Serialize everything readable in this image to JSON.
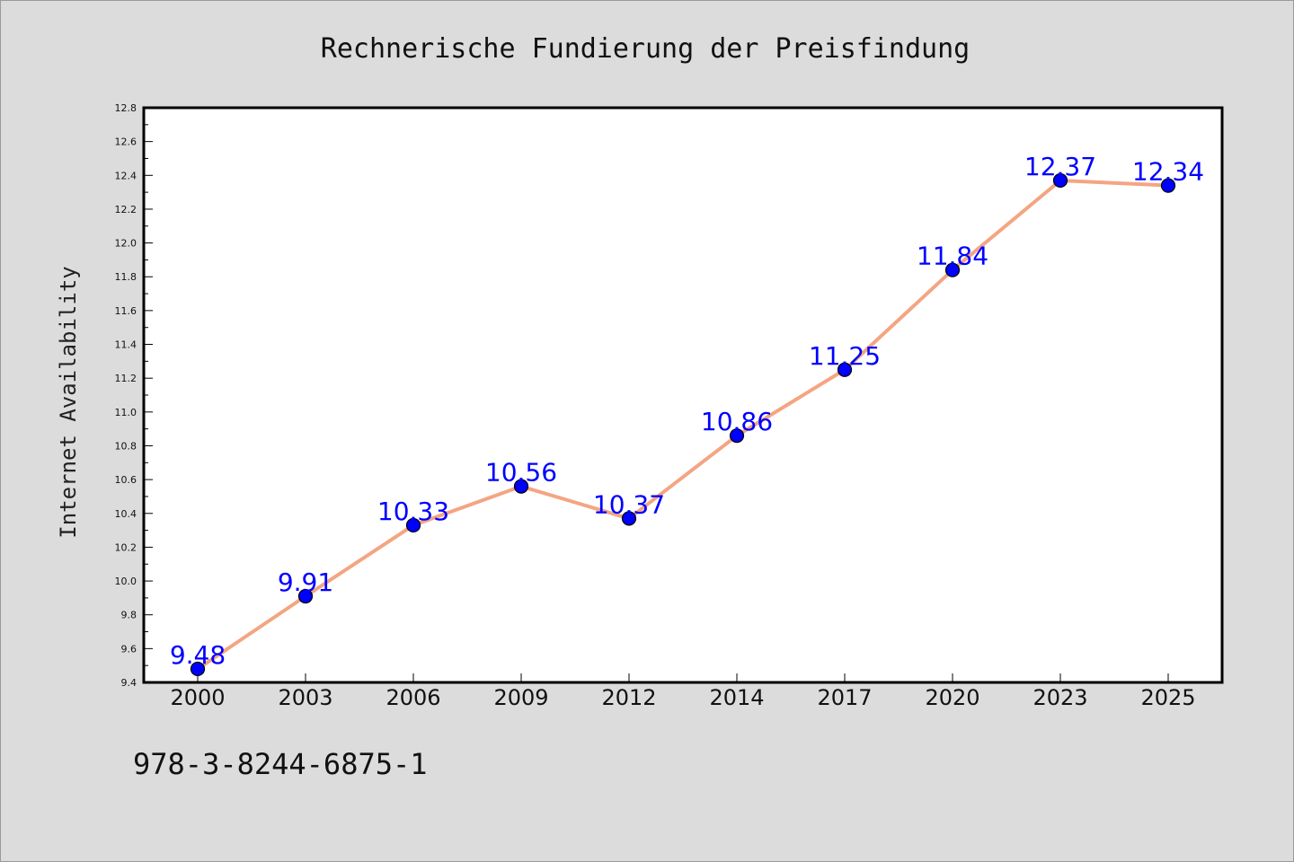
{
  "chart_data": {
    "type": "line",
    "title": "Rechnerische Fundierung der Preisfindung",
    "ylabel": "Internet Availability",
    "xlabel": "",
    "categories": [
      "2000",
      "2003",
      "2006",
      "2009",
      "2012",
      "2014",
      "2017",
      "2020",
      "2023",
      "2025"
    ],
    "series": [
      {
        "values": [
          9.48,
          9.91,
          10.33,
          10.56,
          10.37,
          10.86,
          11.25,
          11.84,
          12.37,
          12.34
        ],
        "labels": [
          "9.48",
          "9.91",
          "10.33",
          "10.56",
          "10.37",
          "10.86",
          "11.25",
          "11.84",
          "12.37",
          "12.34"
        ]
      }
    ],
    "ylim": [
      9.4,
      12.8
    ],
    "yticks": [
      "9.4",
      "9.6",
      "9.8",
      "10.0",
      "10.2",
      "10.4",
      "10.6",
      "10.8",
      "11.0",
      "11.2",
      "11.4",
      "11.6",
      "11.8",
      "12.0",
      "12.2",
      "12.4",
      "12.6",
      "12.8"
    ],
    "grid": false,
    "colors": {
      "line": "#f4a582",
      "marker": "#0000ff",
      "label": "#0000ff"
    }
  },
  "footer": {
    "isbn": "978-3-8244-6875-1"
  }
}
